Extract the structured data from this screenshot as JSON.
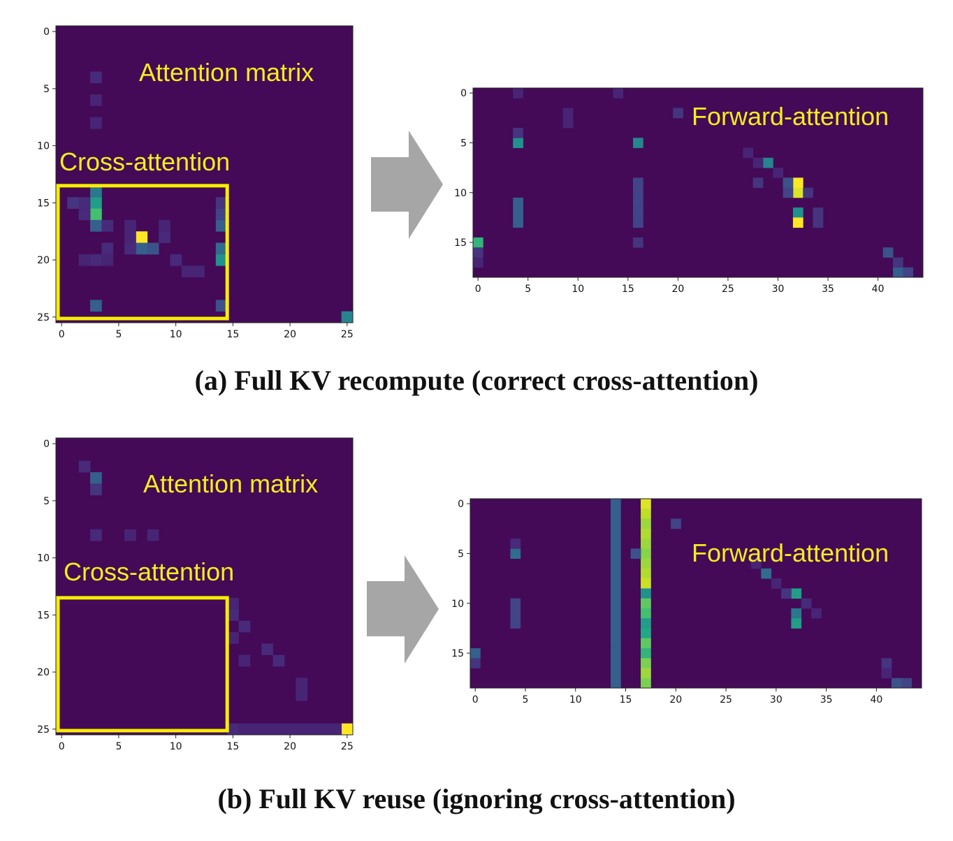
{
  "colors": {
    "background": "#440a57",
    "annotation": "#f2ee1c",
    "box": "#f5ee00",
    "arrow": "#a6a6a6",
    "viridis": [
      "#440154",
      "#482475",
      "#414487",
      "#355f8d",
      "#2a788e",
      "#21918c",
      "#22a884",
      "#44bf70",
      "#7ad151",
      "#bddf26",
      "#fde725"
    ]
  },
  "panel_a": {
    "caption": "(a) Full KV recompute (correct cross-attention)",
    "left_annotation_title": "Attention matrix",
    "left_annotation_box": "Cross-attention",
    "right_annotation": "Forward-attention"
  },
  "panel_b": {
    "caption": "(b) Full KV reuse (ignoring cross-attention)",
    "left_annotation_title": "Attention matrix",
    "left_annotation_box": "Cross-attention",
    "right_annotation": "Forward-attention"
  },
  "chart_data": [
    {
      "id": "a_attention_matrix",
      "type": "heatmap",
      "rows": 26,
      "cols": 26,
      "xticks": [
        0,
        5,
        10,
        15,
        20,
        25
      ],
      "yticks": [
        0,
        5,
        10,
        15,
        20,
        25
      ],
      "highlight_box": {
        "rows": [
          13.5,
          25.5
        ],
        "cols": [
          -0.5,
          14.5
        ],
        "label": "Cross-attention"
      },
      "cells": [
        [
          15,
          3,
          0.55
        ],
        [
          16,
          3,
          0.7
        ],
        [
          14,
          3,
          0.4
        ],
        [
          17,
          3,
          0.3
        ],
        [
          18,
          7,
          1.0
        ],
        [
          19,
          7,
          0.3
        ],
        [
          19,
          8,
          0.25
        ],
        [
          20,
          14,
          0.5
        ],
        [
          19,
          14,
          0.35
        ],
        [
          17,
          14,
          0.3
        ],
        [
          24,
          3,
          0.3
        ],
        [
          24,
          14,
          0.25
        ],
        [
          25,
          25,
          0.45
        ],
        [
          15,
          1,
          0.15
        ],
        [
          16,
          2,
          0.12
        ],
        [
          15,
          2,
          0.12
        ],
        [
          17,
          4,
          0.12
        ],
        [
          19,
          4,
          0.12
        ],
        [
          20,
          3,
          0.12
        ],
        [
          20,
          4,
          0.1
        ],
        [
          18,
          9,
          0.12
        ],
        [
          17,
          9,
          0.1
        ],
        [
          20,
          10,
          0.12
        ],
        [
          21,
          11,
          0.1
        ],
        [
          21,
          12,
          0.1
        ],
        [
          16,
          14,
          0.2
        ],
        [
          15,
          14,
          0.15
        ],
        [
          6,
          3,
          0.1
        ],
        [
          4,
          3,
          0.12
        ],
        [
          8,
          3,
          0.1
        ],
        [
          20,
          2,
          0.1
        ],
        [
          19,
          6,
          0.12
        ],
        [
          17,
          6,
          0.1
        ],
        [
          18,
          6,
          0.1
        ]
      ]
    },
    {
      "id": "a_forward_attention",
      "type": "heatmap",
      "rows": 19,
      "cols": 45,
      "xticks": [
        0,
        5,
        10,
        15,
        20,
        25,
        30,
        35,
        40
      ],
      "yticks": [
        0,
        5,
        10,
        15
      ],
      "cells": [
        [
          5,
          4,
          0.5
        ],
        [
          5,
          16,
          0.45
        ],
        [
          7,
          29,
          0.45
        ],
        [
          9,
          32,
          1.0
        ],
        [
          10,
          32,
          0.95
        ],
        [
          12,
          32,
          0.5
        ],
        [
          13,
          32,
          1.0
        ],
        [
          15,
          0,
          0.65
        ],
        [
          11,
          4,
          0.3
        ],
        [
          12,
          4,
          0.3
        ],
        [
          13,
          4,
          0.3
        ],
        [
          9,
          16,
          0.2
        ],
        [
          10,
          16,
          0.2
        ],
        [
          11,
          16,
          0.2
        ],
        [
          12,
          16,
          0.2
        ],
        [
          13,
          16,
          0.2
        ],
        [
          15,
          16,
          0.15
        ],
        [
          2,
          20,
          0.15
        ],
        [
          9,
          28,
          0.15
        ],
        [
          9,
          31,
          0.25
        ],
        [
          10,
          31,
          0.2
        ],
        [
          10,
          33,
          0.15
        ],
        [
          12,
          34,
          0.15
        ],
        [
          13,
          34,
          0.15
        ],
        [
          16,
          41,
          0.25
        ],
        [
          18,
          42,
          0.3
        ],
        [
          18,
          43,
          0.2
        ],
        [
          17,
          42,
          0.15
        ],
        [
          2,
          9,
          0.1
        ],
        [
          3,
          9,
          0.1
        ],
        [
          6,
          27,
          0.1
        ],
        [
          7,
          28,
          0.1
        ],
        [
          8,
          30,
          0.1
        ],
        [
          4,
          4,
          0.15
        ],
        [
          16,
          0,
          0.15
        ],
        [
          17,
          0,
          0.1
        ],
        [
          0,
          14,
          0.1
        ],
        [
          0,
          4,
          0.1
        ]
      ]
    },
    {
      "id": "b_attention_matrix",
      "type": "heatmap",
      "rows": 26,
      "cols": 26,
      "xticks": [
        0,
        5,
        10,
        15,
        20,
        25
      ],
      "yticks": [
        0,
        5,
        10,
        15,
        20,
        25
      ],
      "highlight_box": {
        "rows": [
          13.5,
          25.5
        ],
        "cols": [
          -0.5,
          14.5
        ],
        "label": "Cross-attention"
      },
      "cells": [
        [
          25,
          25,
          1.0
        ],
        [
          3,
          3,
          0.3
        ],
        [
          4,
          3,
          0.15
        ],
        [
          2,
          2,
          0.12
        ],
        [
          8,
          3,
          0.12
        ],
        [
          8,
          6,
          0.1
        ],
        [
          8,
          8,
          0.1
        ],
        [
          15,
          15,
          0.12
        ],
        [
          16,
          16,
          0.12
        ],
        [
          18,
          18,
          0.12
        ],
        [
          19,
          19,
          0.12
        ],
        [
          19,
          16,
          0.1
        ],
        [
          21,
          21,
          0.1
        ],
        [
          22,
          21,
          0.1
        ],
        [
          25,
          15,
          0.12
        ],
        [
          25,
          16,
          0.1
        ],
        [
          25,
          17,
          0.1
        ],
        [
          25,
          18,
          0.1
        ],
        [
          25,
          19,
          0.1
        ],
        [
          25,
          20,
          0.1
        ],
        [
          25,
          21,
          0.1
        ],
        [
          25,
          22,
          0.1
        ],
        [
          25,
          23,
          0.1
        ],
        [
          25,
          24,
          0.1
        ],
        [
          14,
          15,
          0.1
        ],
        [
          17,
          15,
          0.1
        ]
      ]
    },
    {
      "id": "b_forward_attention",
      "type": "heatmap",
      "rows": 19,
      "cols": 45,
      "xticks": [
        0,
        5,
        10,
        15,
        20,
        25,
        30,
        35,
        40
      ],
      "yticks": [
        0,
        5,
        10,
        15
      ],
      "column_bands": [
        {
          "col": 14,
          "values": [
            0.3,
            0.3,
            0.3,
            0.3,
            0.3,
            0.3,
            0.3,
            0.3,
            0.3,
            0.3,
            0.3,
            0.3,
            0.3,
            0.3,
            0.3,
            0.3,
            0.3,
            0.3,
            0.3
          ]
        },
        {
          "col": 17,
          "values": [
            0.95,
            0.9,
            0.85,
            0.88,
            0.85,
            0.82,
            0.85,
            0.88,
            0.92,
            0.5,
            0.75,
            0.7,
            0.55,
            0.6,
            0.75,
            0.65,
            0.8,
            0.85,
            0.8
          ]
        }
      ],
      "cells": [
        [
          5,
          4,
          0.35
        ],
        [
          5,
          16,
          0.25
        ],
        [
          2,
          20,
          0.2
        ],
        [
          7,
          29,
          0.35
        ],
        [
          9,
          32,
          0.55
        ],
        [
          11,
          32,
          0.4
        ],
        [
          12,
          32,
          0.55
        ],
        [
          15,
          0,
          0.3
        ],
        [
          10,
          4,
          0.2
        ],
        [
          11,
          4,
          0.2
        ],
        [
          12,
          4,
          0.2
        ],
        [
          16,
          0,
          0.15
        ],
        [
          18,
          42,
          0.25
        ],
        [
          18,
          43,
          0.2
        ],
        [
          16,
          41,
          0.15
        ],
        [
          17,
          41,
          0.1
        ],
        [
          9,
          31,
          0.15
        ],
        [
          10,
          33,
          0.12
        ],
        [
          11,
          34,
          0.1
        ],
        [
          4,
          4,
          0.12
        ],
        [
          6,
          28,
          0.1
        ],
        [
          8,
          30,
          0.1
        ]
      ]
    }
  ]
}
